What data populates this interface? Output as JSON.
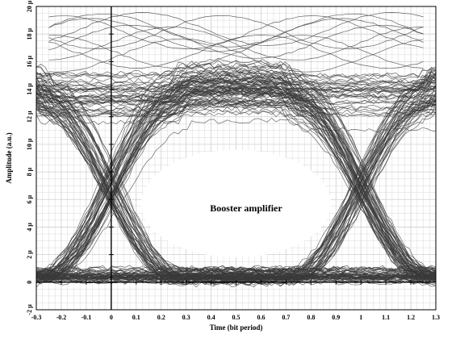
{
  "chart_data": {
    "type": "line",
    "title": "",
    "subtitle": "",
    "xlabel": "Time (bit period)",
    "ylabel": "Amplitude (a.u.)",
    "xlim": [
      -0.3,
      1.3
    ],
    "ylim": [
      -2,
      20
    ],
    "x_ticks": [
      -0.3,
      -0.2,
      -0.1,
      0,
      0.1,
      0.2,
      0.3,
      0.4,
      0.5,
      0.6,
      0.7,
      0.8,
      0.9,
      1,
      1.1,
      1.2,
      1.3
    ],
    "x_tick_labels": [
      "-0.3",
      "-0.2",
      "-0.1",
      "0",
      "0.1",
      "0.2",
      "0.3",
      "0.4",
      "0.5",
      "0.6",
      "0.7",
      "0.8",
      "0.9",
      "1",
      "1.1",
      "1.2",
      "1.3"
    ],
    "y_ticks": [
      -2,
      0,
      2,
      4,
      6,
      8,
      10,
      12,
      14,
      16,
      18,
      20
    ],
    "y_tick_labels": [
      "-2 μ",
      "0",
      "2 μ",
      "4 μ",
      "6 μ",
      "8 μ",
      "10 μ",
      "12 μ",
      "14 μ",
      "16 μ",
      "18 μ",
      "20 μ"
    ],
    "grid": true,
    "legend": "none",
    "annotation": "Booster amplifier",
    "annotation_x": 0.58,
    "annotation_y": 5.5,
    "description_of_data": "eye diagram of many superimposed traces",
    "trace_levels": {
      "high_mean": 13.5,
      "high_spread": 2.2,
      "low_mean": 0.4,
      "low_spread": 0.6,
      "crossing_times": [
        0,
        1
      ],
      "crossing_level": 6.5,
      "eye_top": 9.0,
      "eye_bottom": 1.2
    },
    "colors": {
      "trace": "#3a3a3a",
      "grid": "#cfcfcf",
      "axis": "#000000"
    }
  }
}
